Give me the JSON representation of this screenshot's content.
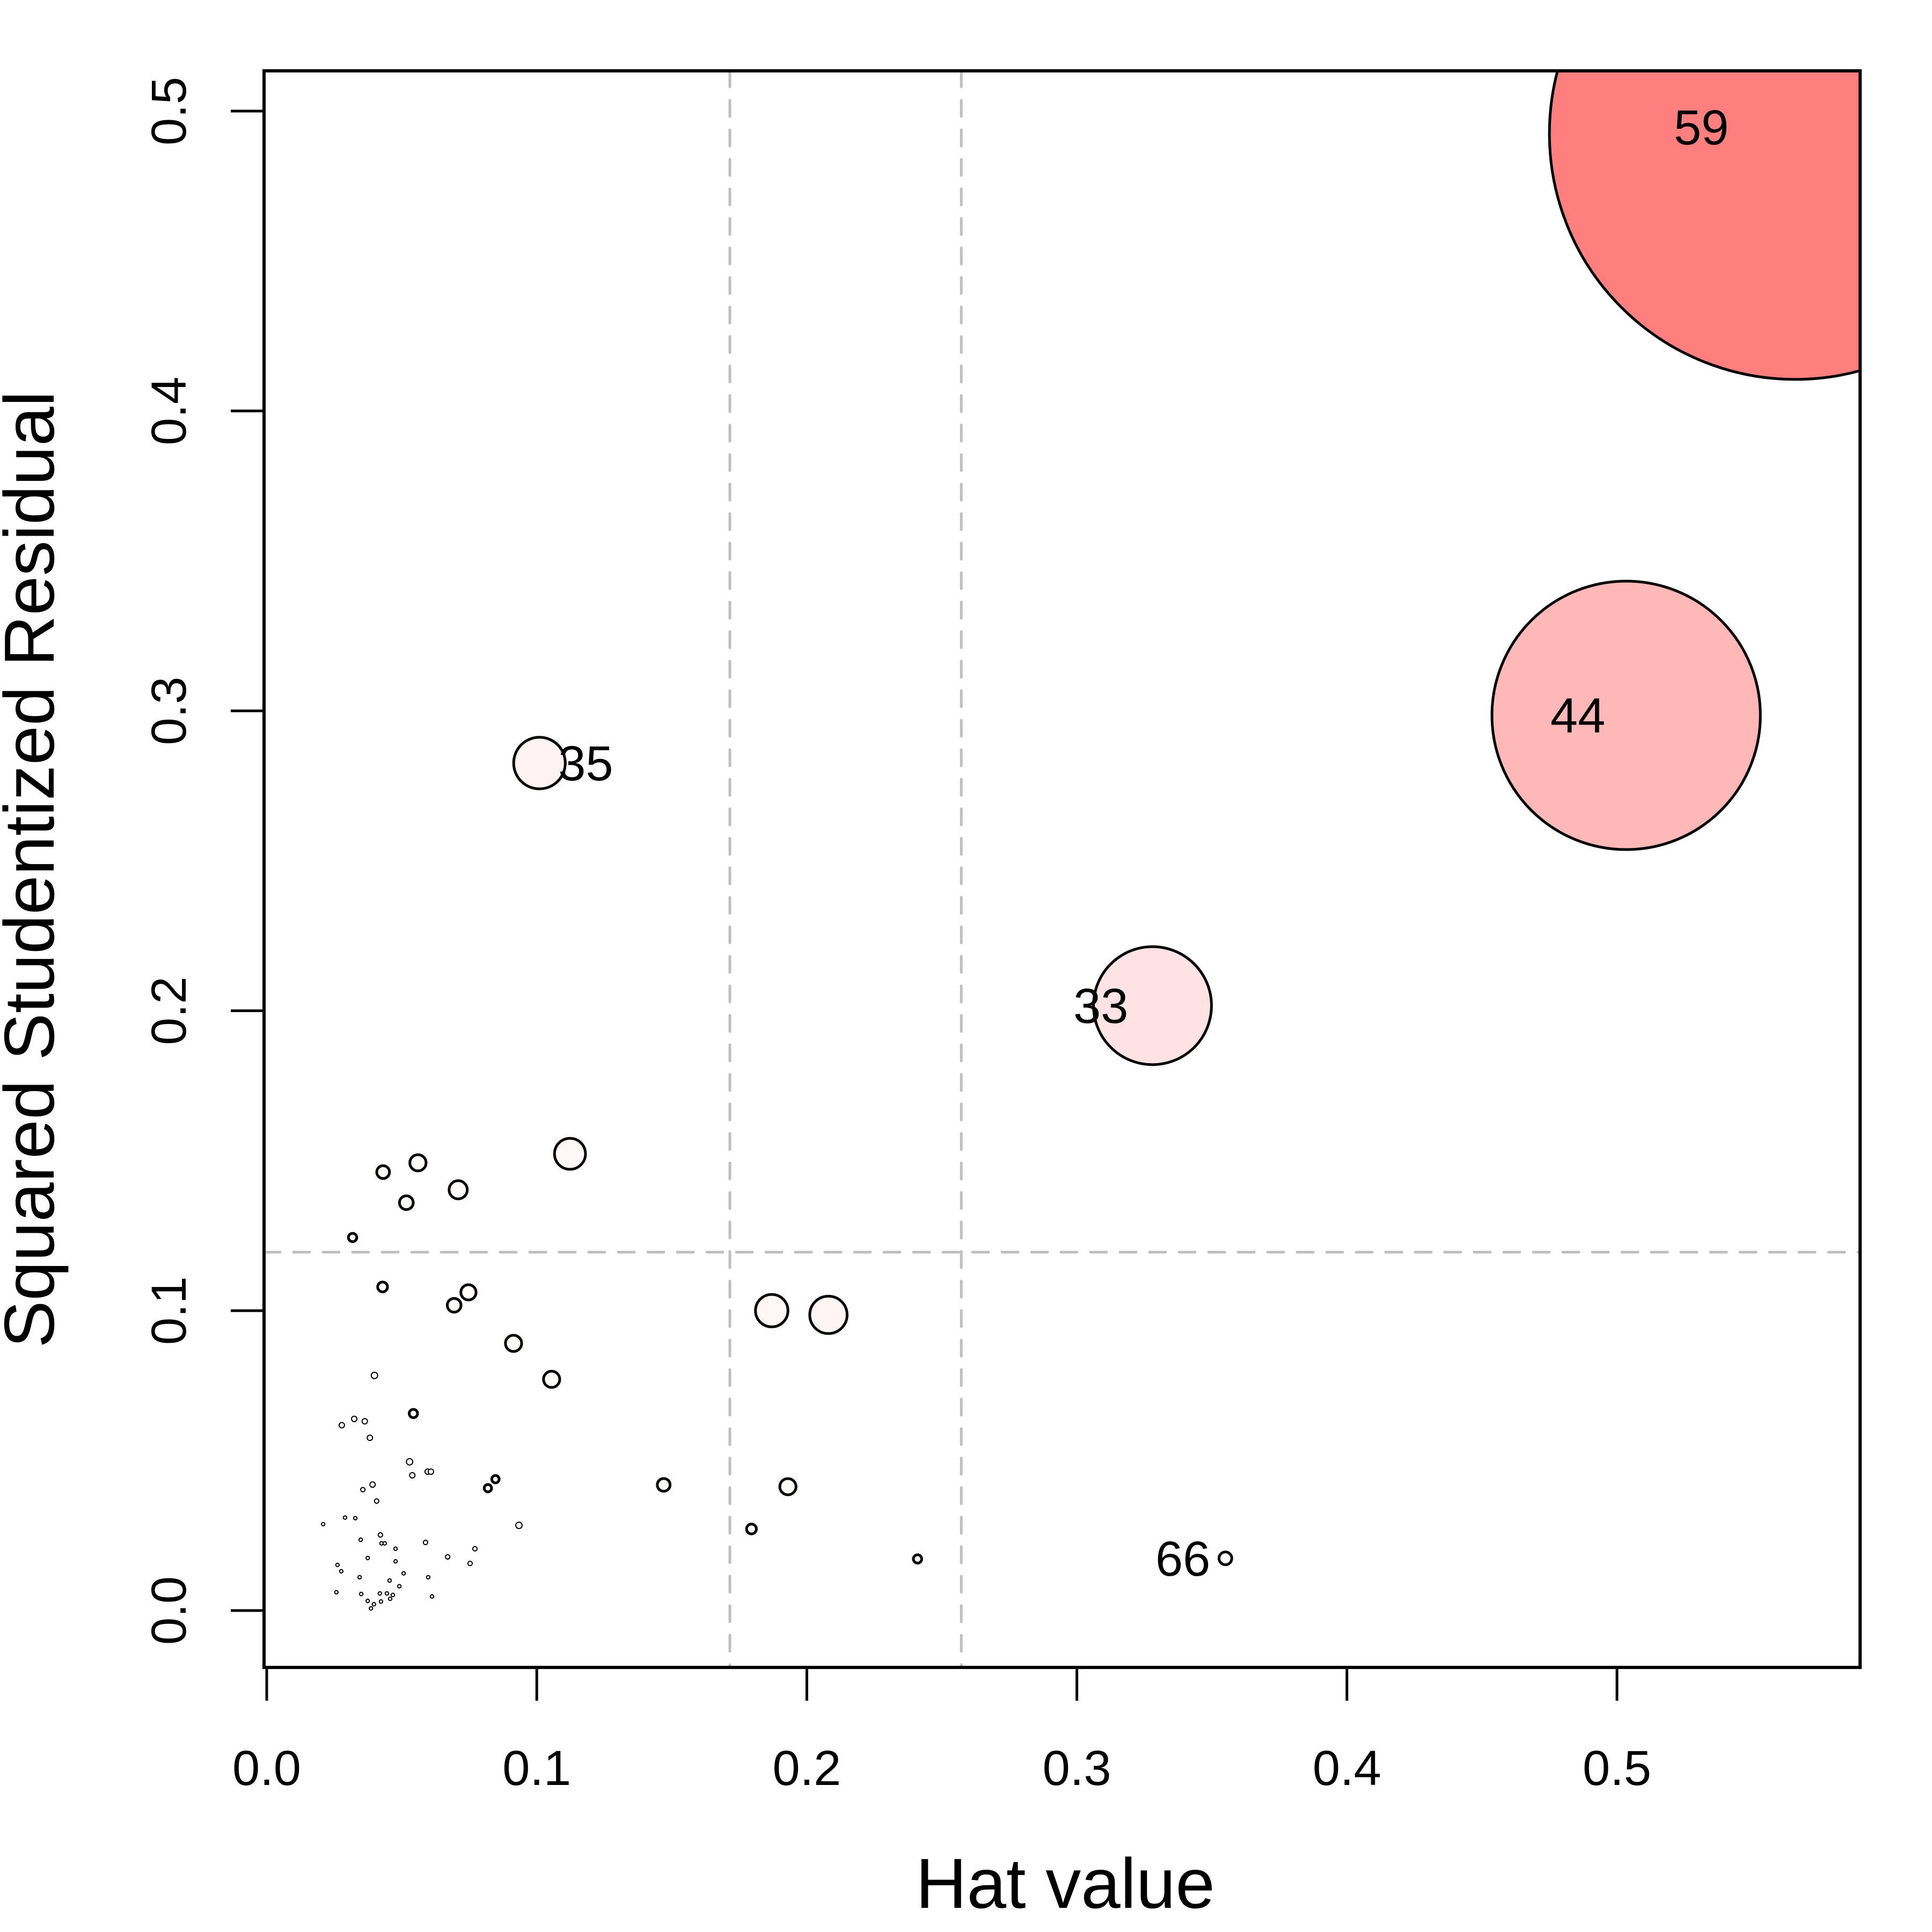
{
  "chart_data": {
    "type": "scatter",
    "title": "",
    "xlabel": "Hat value",
    "ylabel": "Squared Studentized Residual",
    "xlim": [
      -0.002,
      0.59
    ],
    "ylim": [
      -0.019,
      0.5134
    ],
    "x_ticks": [
      0.0,
      0.1,
      0.2,
      0.3,
      0.4,
      0.5
    ],
    "x_tick_labels": [
      "0.0",
      "0.1",
      "0.2",
      "0.3",
      "0.4",
      "0.5"
    ],
    "y_ticks": [
      0.0,
      0.1,
      0.2,
      0.3,
      0.4,
      0.5
    ],
    "y_tick_labels": [
      "0.0",
      "0.1",
      "0.2",
      "0.3",
      "0.4",
      "0.5"
    ],
    "grid": false,
    "legend": "none",
    "reference_lines": {
      "vertical": [
        0.1715,
        0.2572
      ],
      "horizontal": [
        0.1195
      ],
      "color": "#BEBEBE",
      "style": "dashed"
    },
    "bubble_size_meaning": "relative influence (Cook's distance), 1 = largest",
    "point_stroke": "#000000",
    "points": [
      {
        "x": 0.566,
        "y": 0.4925,
        "size": 1.0,
        "fill": "#FF7F7F",
        "label": "59"
      },
      {
        "x": 0.5034,
        "y": 0.2985,
        "size": 0.546,
        "fill": "#FFB8B8",
        "label": "44"
      },
      {
        "x": 0.328,
        "y": 0.2017,
        "size": 0.24,
        "fill": "#FFE2E4",
        "label": "33"
      },
      {
        "x": 0.101,
        "y": 0.2826,
        "size": 0.105,
        "fill": "#FFF2F2",
        "label": "35"
      },
      {
        "x": 0.355,
        "y": 0.0174,
        "size": 0.026,
        "fill": "#FFFCFC",
        "label": "66"
      },
      {
        "x": 0.1123,
        "y": 0.1523,
        "size": 0.063,
        "fill": "#FFF6F6"
      },
      {
        "x": 0.056,
        "y": 0.1493,
        "size": 0.033,
        "fill": "#FFFAFA"
      },
      {
        "x": 0.0431,
        "y": 0.1462,
        "size": 0.026,
        "fill": "#FFFCFC"
      },
      {
        "x": 0.0709,
        "y": 0.1403,
        "size": 0.037,
        "fill": "#FFFAFA"
      },
      {
        "x": 0.0517,
        "y": 0.136,
        "size": 0.028,
        "fill": "#FFFCFC"
      },
      {
        "x": 0.0318,
        "y": 0.1244,
        "size": 0.017,
        "fill": "#FFFFFF"
      },
      {
        "x": 0.0429,
        "y": 0.1079,
        "size": 0.02,
        "fill": "#FFFFFF"
      },
      {
        "x": 0.0747,
        "y": 0.1061,
        "size": 0.031,
        "fill": "#FFFCFC"
      },
      {
        "x": 0.0694,
        "y": 0.1018,
        "size": 0.028,
        "fill": "#FFFCFC"
      },
      {
        "x": 0.187,
        "y": 0.1,
        "size": 0.066,
        "fill": "#FFF6F6"
      },
      {
        "x": 0.208,
        "y": 0.0986,
        "size": 0.076,
        "fill": "#FFF5F5"
      },
      {
        "x": 0.0914,
        "y": 0.0891,
        "size": 0.033,
        "fill": "#FFFCFC"
      },
      {
        "x": 0.0399,
        "y": 0.0784,
        "size": 0.013,
        "fill": "#FFFFFF"
      },
      {
        "x": 0.1055,
        "y": 0.0771,
        "size": 0.033,
        "fill": "#FFFCFC"
      },
      {
        "x": 0.0543,
        "y": 0.0657,
        "size": 0.017,
        "fill": "#FFFFFF"
      },
      {
        "x": 0.0324,
        "y": 0.0639,
        "size": 0.011,
        "fill": "#FFFFFF"
      },
      {
        "x": 0.0363,
        "y": 0.0631,
        "size": 0.011,
        "fill": "#FFFFFF"
      },
      {
        "x": 0.0278,
        "y": 0.0618,
        "size": 0.011,
        "fill": "#FFFFFF"
      },
      {
        "x": 0.0382,
        "y": 0.0576,
        "size": 0.011,
        "fill": "#FFFFFF"
      },
      {
        "x": 0.0529,
        "y": 0.0496,
        "size": 0.013,
        "fill": "#FFFFFF"
      },
      {
        "x": 0.0539,
        "y": 0.0451,
        "size": 0.011,
        "fill": "#FFFFFF"
      },
      {
        "x": 0.0596,
        "y": 0.0463,
        "size": 0.011,
        "fill": "#FFFFFF"
      },
      {
        "x": 0.0608,
        "y": 0.0463,
        "size": 0.011,
        "fill": "#FFFFFF"
      },
      {
        "x": 0.147,
        "y": 0.0419,
        "size": 0.026,
        "fill": "#FFFCFC"
      },
      {
        "x": 0.193,
        "y": 0.0413,
        "size": 0.033,
        "fill": "#FFFCFC"
      },
      {
        "x": 0.0847,
        "y": 0.0438,
        "size": 0.015,
        "fill": "#FFFFFF"
      },
      {
        "x": 0.0819,
        "y": 0.0408,
        "size": 0.015,
        "fill": "#FFFFFF"
      },
      {
        "x": 0.0392,
        "y": 0.042,
        "size": 0.011,
        "fill": "#FFFFFF"
      },
      {
        "x": 0.0356,
        "y": 0.0403,
        "size": 0.009,
        "fill": "#FFFFFF"
      },
      {
        "x": 0.0407,
        "y": 0.0365,
        "size": 0.009,
        "fill": "#FFFFFF"
      },
      {
        "x": 0.0934,
        "y": 0.0284,
        "size": 0.013,
        "fill": "#FFFFFF"
      },
      {
        "x": 0.1795,
        "y": 0.0272,
        "size": 0.02,
        "fill": "#FFFFFF"
      },
      {
        "x": 0.241,
        "y": 0.0172,
        "size": 0.017,
        "fill": "#FFFFFF"
      },
      {
        "x": 0.0209,
        "y": 0.0288,
        "size": 0.007,
        "fill": "#FFFFFF"
      },
      {
        "x": 0.029,
        "y": 0.031,
        "size": 0.007,
        "fill": "#FFFFFF"
      },
      {
        "x": 0.0328,
        "y": 0.0308,
        "size": 0.007,
        "fill": "#FFFFFF"
      },
      {
        "x": 0.0421,
        "y": 0.0252,
        "size": 0.009,
        "fill": "#FFFFFF"
      },
      {
        "x": 0.0348,
        "y": 0.0236,
        "size": 0.007,
        "fill": "#FFFFFF"
      },
      {
        "x": 0.0425,
        "y": 0.0224,
        "size": 0.007,
        "fill": "#FFFFFF"
      },
      {
        "x": 0.0437,
        "y": 0.0224,
        "size": 0.007,
        "fill": "#FFFFFF"
      },
      {
        "x": 0.0588,
        "y": 0.0227,
        "size": 0.009,
        "fill": "#FFFFFF"
      },
      {
        "x": 0.0477,
        "y": 0.0206,
        "size": 0.007,
        "fill": "#FFFFFF"
      },
      {
        "x": 0.0771,
        "y": 0.0206,
        "size": 0.009,
        "fill": "#FFFFFF"
      },
      {
        "x": 0.067,
        "y": 0.0179,
        "size": 0.009,
        "fill": "#FFFFFF"
      },
      {
        "x": 0.0753,
        "y": 0.0157,
        "size": 0.009,
        "fill": "#FFFFFF"
      },
      {
        "x": 0.0374,
        "y": 0.0175,
        "size": 0.007,
        "fill": "#FFFFFF"
      },
      {
        "x": 0.0477,
        "y": 0.0164,
        "size": 0.007,
        "fill": "#FFFFFF"
      },
      {
        "x": 0.0262,
        "y": 0.0152,
        "size": 0.007,
        "fill": "#FFFFFF"
      },
      {
        "x": 0.0276,
        "y": 0.0131,
        "size": 0.007,
        "fill": "#FFFFFF"
      },
      {
        "x": 0.0344,
        "y": 0.0111,
        "size": 0.007,
        "fill": "#FFFFFF"
      },
      {
        "x": 0.0507,
        "y": 0.0124,
        "size": 0.007,
        "fill": "#FFFFFF"
      },
      {
        "x": 0.0598,
        "y": 0.0111,
        "size": 0.007,
        "fill": "#FFFFFF"
      },
      {
        "x": 0.0455,
        "y": 0.01,
        "size": 0.007,
        "fill": "#FFFFFF"
      },
      {
        "x": 0.0491,
        "y": 0.0081,
        "size": 0.007,
        "fill": "#FFFFFF"
      },
      {
        "x": 0.0258,
        "y": 0.0061,
        "size": 0.007,
        "fill": "#FFFFFF"
      },
      {
        "x": 0.035,
        "y": 0.0055,
        "size": 0.007,
        "fill": "#FFFFFF"
      },
      {
        "x": 0.0419,
        "y": 0.0057,
        "size": 0.007,
        "fill": "#FFFFFF"
      },
      {
        "x": 0.0445,
        "y": 0.0057,
        "size": 0.007,
        "fill": "#FFFFFF"
      },
      {
        "x": 0.0467,
        "y": 0.0052,
        "size": 0.007,
        "fill": "#FFFFFF"
      },
      {
        "x": 0.0457,
        "y": 0.0039,
        "size": 0.007,
        "fill": "#FFFFFF"
      },
      {
        "x": 0.0612,
        "y": 0.0047,
        "size": 0.007,
        "fill": "#FFFFFF"
      },
      {
        "x": 0.0374,
        "y": 0.0032,
        "size": 0.007,
        "fill": "#FFFFFF"
      },
      {
        "x": 0.0423,
        "y": 0.003,
        "size": 0.007,
        "fill": "#FFFFFF"
      },
      {
        "x": 0.0397,
        "y": 0.0021,
        "size": 0.007,
        "fill": "#FFFFFF"
      },
      {
        "x": 0.0386,
        "y": 0.0007,
        "size": 0.007,
        "fill": "#FFFFFF"
      }
    ],
    "label_offsets": {
      "59": "left-inside",
      "44": "left-inside",
      "33": "left",
      "35": "right",
      "66": "left"
    }
  }
}
